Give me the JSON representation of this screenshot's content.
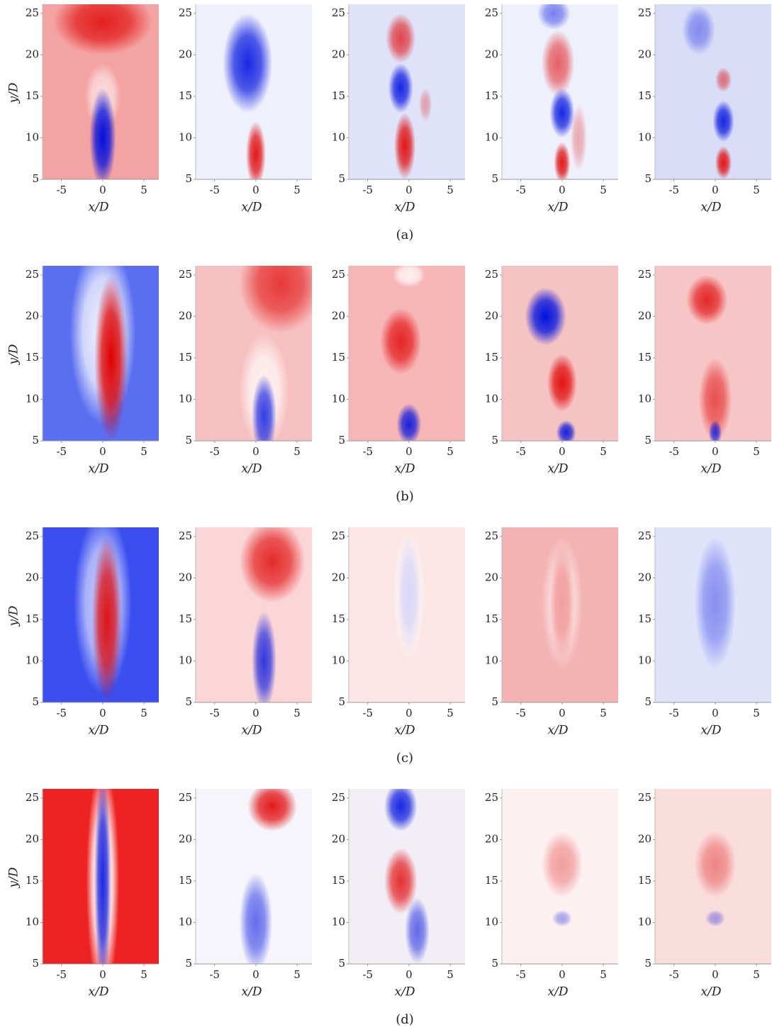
{
  "chart_data": [
    {
      "type": "heatmap",
      "xlabel": "x/D",
      "ylabel": "y/D",
      "xlim": [
        -7.3,
        6.8
      ],
      "ylim": [
        5,
        26.1
      ],
      "xticks": [
        -5,
        0,
        5
      ],
      "yticks": [
        5,
        10,
        15,
        20,
        25
      ]
    },
    {
      "type": "heatmap",
      "xlabel": "x/D",
      "xlim": [
        -7.3,
        6.8
      ],
      "ylim": [
        5,
        26.1
      ],
      "xticks": [
        -5,
        0,
        5
      ],
      "yticks": [
        5,
        10,
        15,
        20,
        25
      ]
    },
    {
      "type": "heatmap",
      "xlabel": "x/D",
      "xlim": [
        -7.3,
        6.8
      ],
      "ylim": [
        5,
        26.1
      ],
      "xticks": [
        -5,
        0,
        5
      ],
      "yticks": [
        5,
        10,
        15,
        20,
        25
      ]
    },
    {
      "type": "heatmap",
      "xlabel": "x/D",
      "xlim": [
        -7.3,
        6.8
      ],
      "ylim": [
        5,
        26.1
      ],
      "xticks": [
        -5,
        0,
        5
      ],
      "yticks": [
        5,
        10,
        15,
        20,
        25
      ]
    },
    {
      "type": "heatmap",
      "xlabel": "x/D",
      "xlim": [
        -7.3,
        6.8
      ],
      "ylim": [
        5,
        26.1
      ],
      "xticks": [
        -5,
        0,
        5
      ],
      "yticks": [
        5,
        10,
        15,
        20,
        25
      ]
    },
    {
      "type": "heatmap",
      "xlabel": "x/D",
      "ylabel": "y/D",
      "xlim": [
        -7.3,
        6.8
      ],
      "ylim": [
        5,
        26.1
      ],
      "xticks": [
        -5,
        0,
        5
      ],
      "yticks": [
        5,
        10,
        15,
        20,
        25
      ]
    },
    {
      "type": "heatmap",
      "xlabel": "x/D",
      "xlim": [
        -7.3,
        6.8
      ],
      "ylim": [
        5,
        26.1
      ],
      "xticks": [
        -5,
        0,
        5
      ],
      "yticks": [
        5,
        10,
        15,
        20,
        25
      ]
    },
    {
      "type": "heatmap",
      "xlabel": "x/D",
      "xlim": [
        -7.3,
        6.8
      ],
      "ylim": [
        5,
        26.1
      ],
      "xticks": [
        -5,
        0,
        5
      ],
      "yticks": [
        5,
        10,
        15,
        20,
        25
      ]
    },
    {
      "type": "heatmap",
      "xlabel": "x/D",
      "xlim": [
        -7.3,
        6.8
      ],
      "ylim": [
        5,
        26.1
      ],
      "xticks": [
        -5,
        0,
        5
      ],
      "yticks": [
        5,
        10,
        15,
        20,
        25
      ]
    },
    {
      "type": "heatmap",
      "xlabel": "x/D",
      "xlim": [
        -7.3,
        6.8
      ],
      "ylim": [
        5,
        26.1
      ],
      "xticks": [
        -5,
        0,
        5
      ],
      "yticks": [
        5,
        10,
        15,
        20,
        25
      ]
    },
    {
      "type": "heatmap",
      "xlabel": "x/D",
      "ylabel": "y/D",
      "xlim": [
        -7.3,
        6.8
      ],
      "ylim": [
        5,
        26.1
      ],
      "xticks": [
        -5,
        0,
        5
      ],
      "yticks": [
        5,
        10,
        15,
        20,
        25
      ]
    },
    {
      "type": "heatmap",
      "xlabel": "x/D",
      "xlim": [
        -7.3,
        6.8
      ],
      "ylim": [
        5,
        26.1
      ],
      "xticks": [
        -5,
        0,
        5
      ],
      "yticks": [
        5,
        10,
        15,
        20,
        25
      ]
    },
    {
      "type": "heatmap",
      "xlabel": "x/D",
      "xlim": [
        -7.3,
        6.8
      ],
      "ylim": [
        5,
        26.1
      ],
      "xticks": [
        -5,
        0,
        5
      ],
      "yticks": [
        5,
        10,
        15,
        20,
        25
      ]
    },
    {
      "type": "heatmap",
      "xlabel": "x/D",
      "xlim": [
        -7.3,
        6.8
      ],
      "ylim": [
        5,
        26.1
      ],
      "xticks": [
        -5,
        0,
        5
      ],
      "yticks": [
        5,
        10,
        15,
        20,
        25
      ]
    },
    {
      "type": "heatmap",
      "xlabel": "x/D",
      "xlim": [
        -7.3,
        6.8
      ],
      "ylim": [
        5,
        26.1
      ],
      "xticks": [
        -5,
        0,
        5
      ],
      "yticks": [
        5,
        10,
        15,
        20,
        25
      ]
    },
    {
      "type": "heatmap",
      "xlabel": "x/D",
      "ylabel": "y/D",
      "xlim": [
        -7.3,
        6.8
      ],
      "ylim": [
        5,
        26.1
      ],
      "xticks": [
        -5,
        0,
        5
      ],
      "yticks": [
        5,
        10,
        15,
        20,
        25
      ]
    },
    {
      "type": "heatmap",
      "xlabel": "x/D",
      "xlim": [
        -7.3,
        6.8
      ],
      "ylim": [
        5,
        26.1
      ],
      "xticks": [
        -5,
        0,
        5
      ],
      "yticks": [
        5,
        10,
        15,
        20,
        25
      ]
    },
    {
      "type": "heatmap",
      "xlabel": "x/D",
      "xlim": [
        -7.3,
        6.8
      ],
      "ylim": [
        5,
        26.1
      ],
      "xticks": [
        -5,
        0,
        5
      ],
      "yticks": [
        5,
        10,
        15,
        20,
        25
      ]
    },
    {
      "type": "heatmap",
      "xlabel": "x/D",
      "xlim": [
        -7.3,
        6.8
      ],
      "ylim": [
        5,
        26.1
      ],
      "xticks": [
        -5,
        0,
        5
      ],
      "yticks": [
        5,
        10,
        15,
        20,
        25
      ]
    },
    {
      "type": "heatmap",
      "xlabel": "x/D",
      "xlim": [
        -7.3,
        6.8
      ],
      "ylim": [
        5,
        26.1
      ],
      "xticks": [
        -5,
        0,
        5
      ],
      "yticks": [
        5,
        10,
        15,
        20,
        25
      ]
    }
  ],
  "subfigure_labels": [
    "(a)",
    "(b)",
    "(c)",
    "(d)"
  ]
}
